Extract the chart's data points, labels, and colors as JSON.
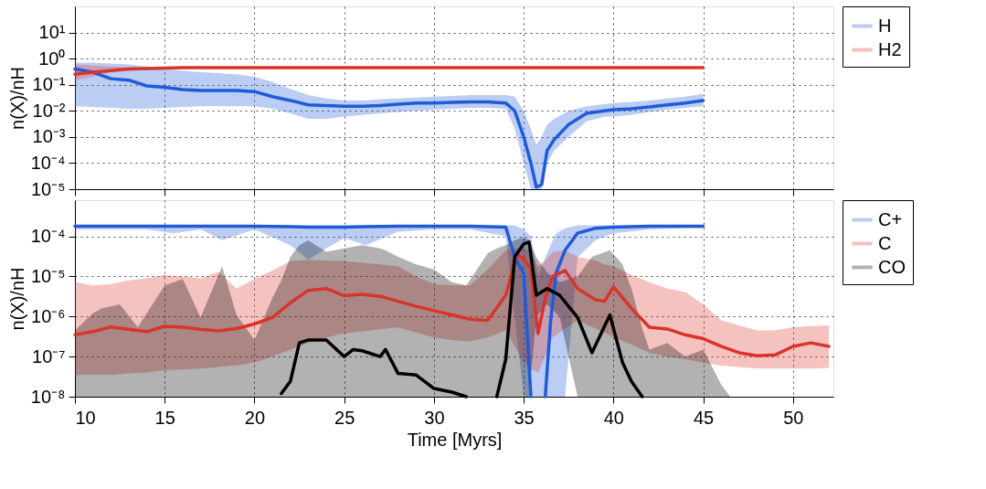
{
  "chart_data": [
    {
      "type": "line",
      "ylabel": "n(X)/nH",
      "log": "y",
      "grid": true,
      "legend": "top right",
      "tick_labels": "y",
      "line_style": "solid",
      "marker": "none",
      "xlim": [
        10,
        52.25
      ],
      "xticks": [
        10,
        15,
        20,
        25,
        30,
        35,
        40,
        45,
        50
      ],
      "ylim": [
        1e-05,
        100
      ],
      "yticks": [
        {
          "value": 1e-05,
          "label": "10⁻⁵"
        },
        {
          "value": 0.0001,
          "label": "10⁻⁴"
        },
        {
          "value": 0.001,
          "label": "10⁻³"
        },
        {
          "value": 0.01,
          "label": "10⁻²"
        },
        {
          "value": 0.1,
          "label": "10⁻¹"
        },
        {
          "value": 1,
          "label": "10⁰"
        },
        {
          "value": 10,
          "label": "10¹"
        }
      ],
      "series": [
        {
          "name": "H",
          "color": "#1f5bd8",
          "x": [
            10,
            11,
            12,
            13,
            14,
            15,
            16,
            17,
            18,
            19,
            20,
            21,
            22,
            23,
            24,
            25,
            26,
            27,
            28,
            29,
            30,
            31,
            32,
            33,
            34,
            34.5,
            35,
            35.4,
            35.7,
            36,
            36.3,
            36.7,
            37.5,
            38.5,
            39.5,
            40,
            41,
            42,
            43,
            44,
            45
          ],
          "values": [
            0.4,
            0.3,
            0.17,
            0.15,
            0.09,
            0.08,
            0.065,
            0.06,
            0.06,
            0.06,
            0.055,
            0.035,
            0.025,
            0.017,
            0.016,
            0.015,
            0.015,
            0.016,
            0.018,
            0.02,
            0.02,
            0.021,
            0.022,
            0.022,
            0.02,
            0.01,
            0.001,
            0.0001,
            1.2e-05,
            1.5e-05,
            0.0003,
            0.0008,
            0.003,
            0.008,
            0.01,
            0.011,
            0.012,
            0.014,
            0.017,
            0.02,
            0.025
          ],
          "upper": [
            0.7,
            0.7,
            0.65,
            0.6,
            0.5,
            0.4,
            0.35,
            0.3,
            0.28,
            0.25,
            0.2,
            0.13,
            0.07,
            0.04,
            0.03,
            0.025,
            0.025,
            0.028,
            0.03,
            0.032,
            0.035,
            0.037,
            0.04,
            0.04,
            0.04,
            0.035,
            0.01,
            0.002,
            0.0005,
            0.001,
            0.003,
            0.005,
            0.01,
            0.015,
            0.018,
            0.02,
            0.022,
            0.025,
            0.03,
            0.035,
            0.045
          ],
          "lower": [
            0.015,
            0.014,
            0.013,
            0.012,
            0.012,
            0.013,
            0.014,
            0.015,
            0.015,
            0.015,
            0.015,
            0.012,
            0.008,
            0.005,
            0.005,
            0.006,
            0.007,
            0.008,
            0.009,
            0.01,
            0.011,
            0.012,
            0.013,
            0.013,
            0.012,
            0.002,
            0.0001,
            1e-05,
            1e-05,
            1e-05,
            0.0001,
            0.0003,
            0.001,
            0.004,
            0.006,
            0.006,
            0.007,
            0.009,
            0.011,
            0.013,
            0.015
          ]
        },
        {
          "name": "H2",
          "color": "#d9342b",
          "x": [
            10,
            11,
            12,
            13,
            14,
            16,
            20,
            25,
            30,
            35,
            40,
            45
          ],
          "values": [
            0.25,
            0.3,
            0.35,
            0.4,
            0.42,
            0.45,
            0.45,
            0.45,
            0.45,
            0.45,
            0.45,
            0.45
          ],
          "upper": [
            0.6,
            0.55,
            0.5,
            0.47,
            0.46,
            0.46,
            0.46,
            0.46,
            0.46,
            0.46,
            0.46,
            0.46
          ],
          "lower": [
            0.15,
            0.2,
            0.3,
            0.38,
            0.4,
            0.44,
            0.44,
            0.44,
            0.44,
            0.44,
            0.44,
            0.44
          ]
        }
      ]
    },
    {
      "type": "line",
      "xlabel": "Time [Myrs]",
      "ylabel": "n(X)/nH",
      "log": "y",
      "grid": true,
      "legend": "top right",
      "line_style": "solid",
      "marker": "none",
      "xlim": [
        10,
        52.25
      ],
      "xticks": [
        10,
        15,
        20,
        25,
        30,
        35,
        40,
        45,
        50
      ],
      "ylim": [
        1e-08,
        0.0008
      ],
      "yticks": [
        {
          "value": 1e-08,
          "label": "10⁻⁸"
        },
        {
          "value": 1e-07,
          "label": "10⁻⁷"
        },
        {
          "value": 1e-06,
          "label": "10⁻⁶"
        },
        {
          "value": 1e-05,
          "label": "10⁻⁵"
        },
        {
          "value": 0.0001,
          "label": "10⁻⁴"
        }
      ],
      "series": [
        {
          "name": "C+",
          "color": "#1f5bd8",
          "x": [
            10,
            12,
            14,
            15.5,
            17,
            18.2,
            20,
            22,
            23,
            24,
            25,
            26.2,
            28,
            30,
            32,
            34,
            34.5,
            35,
            35.4,
            35.8,
            36.2,
            36.5,
            36.8,
            37.3,
            38,
            39,
            40,
            42,
            44,
            45
          ],
          "values": [
            0.00018,
            0.00018,
            0.00018,
            0.00018,
            0.00018,
            0.00018,
            0.00018,
            0.000175,
            0.00017,
            0.00017,
            0.00017,
            0.000175,
            0.00018,
            0.00018,
            0.00018,
            0.00017,
            3e-05,
            1.2e-05,
            1e-08,
            null,
            1e-08,
            8e-07,
            1.2e-05,
            4.5e-05,
            0.00012,
            0.00016,
            0.00017,
            0.00018,
            0.00018,
            0.00018
          ],
          "upper": [
            0.00019,
            0.00019,
            0.00019,
            0.00019,
            0.00019,
            0.00019,
            0.00019,
            0.00019,
            0.00019,
            0.00019,
            0.00019,
            0.00019,
            0.00019,
            0.00019,
            0.00019,
            0.00019,
            0.00019,
            0.00015,
            0.0001,
            1e-05,
            3e-05,
            6e-05,
            0.00012,
            0.00016,
            0.00019,
            0.00019,
            0.00019,
            0.00019,
            0.00019,
            0.00019
          ],
          "lower": [
            0.00015,
            0.00015,
            0.00015,
            0.00012,
            0.00015,
            8e-05,
            0.00015,
            6e-05,
            2.6e-05,
            5e-05,
            9e-05,
            6e-05,
            0.00013,
            0.00015,
            0.00015,
            0.0001,
            1e-06,
            1e-08,
            1e-08,
            1e-08,
            1e-08,
            1e-08,
            1e-08,
            1e-08,
            3e-05,
            8e-05,
            0.00012,
            0.00015,
            0.00016,
            0.00016
          ]
        },
        {
          "name": "C",
          "color": "#d9342b",
          "x": [
            10,
            11,
            12,
            13,
            14,
            15,
            16,
            17,
            18,
            19,
            20,
            21,
            22,
            23,
            24,
            25,
            26,
            27,
            28,
            29,
            30,
            31,
            32,
            33,
            34,
            34.6,
            35,
            35.4,
            35.8,
            36.2,
            36.6,
            37.3,
            38,
            39,
            39.5,
            40,
            41,
            42,
            43,
            44,
            45,
            46,
            47,
            48,
            49,
            50,
            51,
            52
          ],
          "values": [
            3.5e-07,
            4.2e-07,
            5.5e-07,
            4.8e-07,
            4.2e-07,
            5.7e-07,
            5.4e-07,
            4.8e-07,
            4.4e-07,
            5e-07,
            6.5e-07,
            9.5e-07,
            2.2e-06,
            4.5e-06,
            5e-06,
            3.3e-06,
            3.6e-06,
            3.2e-06,
            2.4e-06,
            1.8e-06,
            1.4e-06,
            1.1e-06,
            8.6e-07,
            8e-07,
            3.4e-06,
            3.4e-05,
            2.8e-05,
            1.5e-05,
            3.8e-07,
            2.9e-06,
            1e-05,
            1.4e-05,
            5e-06,
            2.6e-06,
            2.4e-06,
            5.5e-06,
            1.6e-06,
            5.4e-07,
            4.9e-07,
            3.5e-07,
            2.8e-07,
            1.8e-07,
            1.25e-07,
            1.05e-07,
            1.1e-07,
            1.8e-07,
            2.2e-07,
            1.8e-07
          ],
          "upper": [
            7.2e-06,
            6e-06,
            6.5e-06,
            8e-06,
            9e-06,
            1.1e-05,
            1e-05,
            9e-06,
            1.3e-05,
            5e-06,
            8.6e-06,
            1.4e-05,
            2.4e-05,
            2.6e-05,
            2.5e-05,
            2.4e-05,
            2.2e-05,
            2e-05,
            1.8e-05,
            1e-05,
            6.5e-06,
            6e-06,
            6e-06,
            1.5e-05,
            4.5e-05,
            5e-05,
            5.5e-05,
            4e-05,
            1.8e-05,
            2.5e-05,
            4e-05,
            4.5e-05,
            3.1e-05,
            2.5e-05,
            2e-05,
            1.8e-05,
            1.1e-05,
            7.2e-06,
            5e-06,
            4.1e-06,
            2e-06,
            8e-07,
            6e-07,
            4.5e-07,
            4.5e-07,
            5.4e-07,
            5.8e-07,
            6e-07
          ],
          "lower": [
            3.5e-08,
            3.5e-08,
            3.5e-08,
            3.8e-08,
            4e-08,
            4.6e-08,
            4.8e-08,
            5e-08,
            5.5e-08,
            6e-08,
            7.2e-08,
            1e-07,
            1.5e-07,
            2.2e-07,
            3e-07,
            3.8e-07,
            4.2e-07,
            4.8e-07,
            5.4e-07,
            4e-07,
            3e-07,
            2.6e-07,
            2.4e-07,
            3e-07,
            4.5e-07,
            1.5e-07,
            7.2e-08,
            5e-08,
            4e-08,
            1e-07,
            3e-07,
            5e-07,
            8e-07,
            5e-07,
            4e-07,
            3e-07,
            2e-07,
            1.25e-07,
            1e-07,
            8.6e-08,
            7e-08,
            6e-08,
            5.5e-08,
            5e-08,
            5e-08,
            5e-08,
            5e-08,
            5.2e-08
          ]
        },
        {
          "name": "CO",
          "color": "#000000",
          "x": [
            10,
            11,
            11.5,
            12.5,
            13.5,
            15,
            16,
            17,
            18.2,
            19,
            20,
            21,
            21.5,
            22,
            22.5,
            23,
            24,
            25,
            25.5,
            26,
            27,
            27.3,
            28,
            29,
            30,
            31,
            31.8,
            33,
            33.5,
            34,
            34.5,
            35,
            35.3,
            35.7,
            36.3,
            37,
            38,
            38.8,
            39.8,
            40.5,
            41,
            41.6,
            42,
            43,
            44,
            45,
            46,
            46.5
          ],
          "values": [
            null,
            null,
            null,
            null,
            null,
            null,
            null,
            null,
            null,
            null,
            null,
            null,
            1.2e-08,
            2.4e-08,
            2.2e-07,
            2.6e-07,
            2.6e-07,
            1e-07,
            1.5e-07,
            1.4e-07,
            1e-07,
            1.5e-07,
            3.8e-08,
            3.5e-08,
            1.6e-08,
            1.3e-08,
            1e-08,
            null,
            1e-08,
            8.6e-08,
            3.1e-05,
            6.5e-05,
            7.2e-05,
            3.4e-06,
            5e-06,
            3.4e-06,
            9.5e-07,
            1.25e-07,
            1.1e-06,
            7.2e-08,
            2.4e-08,
            1e-08,
            null,
            null,
            null,
            null,
            null,
            null
          ],
          "upper": [
            4.5e-07,
            1.2e-06,
            1.6e-06,
            2e-06,
            5.4e-07,
            6e-06,
            8.6e-06,
            9.5e-07,
            1.8e-05,
            1.1e-06,
            2.6e-07,
            2.9e-06,
            8e-06,
            3.1e-05,
            6e-05,
            7.9e-05,
            4.1e-05,
            5e-05,
            5.5e-05,
            6e-05,
            5e-05,
            4.5e-05,
            3.1e-05,
            2e-05,
            1.5e-05,
            7.2e-06,
            6e-06,
            3.8e-05,
            5e-05,
            6e-05,
            8e-05,
            9.5e-05,
            8e-05,
            3e-05,
            1.25e-05,
            7.2e-06,
            1e-05,
            3.1e-05,
            4.5e-05,
            2e-05,
            5e-06,
            5e-07,
            1.5e-07,
            2.2e-07,
            1e-07,
            1.5e-07,
            2e-08,
            1e-08
          ],
          "lower": [
            1e-08,
            1e-08,
            1e-08,
            1e-08,
            1e-08,
            1e-08,
            1e-08,
            1e-08,
            1e-08,
            1e-08,
            1e-08,
            1e-08,
            1e-08,
            1e-08,
            1e-08,
            1e-08,
            1e-08,
            1e-08,
            1e-08,
            1e-08,
            1e-08,
            1e-08,
            1e-08,
            1e-08,
            1e-08,
            1e-08,
            1e-08,
            1e-08,
            1e-08,
            1e-08,
            1e-08,
            1e-08,
            1e-08,
            1e-06,
            2e-06,
            1e-06,
            1e-08,
            1e-08,
            1e-08,
            1e-08,
            1e-08,
            1e-08,
            1e-08,
            1e-08,
            1e-08,
            1e-08,
            1e-08,
            1e-08
          ]
        }
      ]
    }
  ]
}
